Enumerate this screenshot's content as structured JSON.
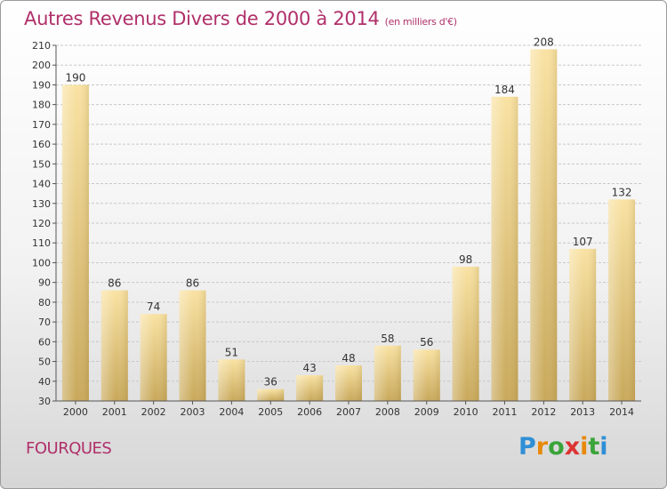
{
  "header": {
    "title": "Autres Revenus Divers de 2000 à 2014",
    "unit_note": "(en milliers d'€)"
  },
  "footer": {
    "commune": "FOURQUES",
    "logo": "Proxiti"
  },
  "colors": {
    "title": "#b0306a",
    "bar_light": "#f9e2a2",
    "bar_dark": "#c9a95a",
    "grid": "#c8c8c8"
  },
  "chart_data": {
    "type": "bar",
    "title": "Autres Revenus Divers de 2000 à 2014",
    "subtitle": "(en milliers d'€)",
    "categories": [
      "2000",
      "2001",
      "2002",
      "2003",
      "2004",
      "2005",
      "2006",
      "2007",
      "2008",
      "2009",
      "2010",
      "2011",
      "2012",
      "2013",
      "2014"
    ],
    "values": [
      190,
      86,
      74,
      86,
      51,
      36,
      43,
      48,
      58,
      56,
      98,
      184,
      208,
      107,
      132
    ],
    "xlabel": "",
    "ylabel": "",
    "ylim": [
      30,
      210
    ],
    "yticks": [
      30,
      40,
      50,
      60,
      70,
      80,
      90,
      100,
      110,
      120,
      130,
      140,
      150,
      160,
      170,
      180,
      190,
      200,
      210
    ],
    "grid": true,
    "data_labels": true
  }
}
